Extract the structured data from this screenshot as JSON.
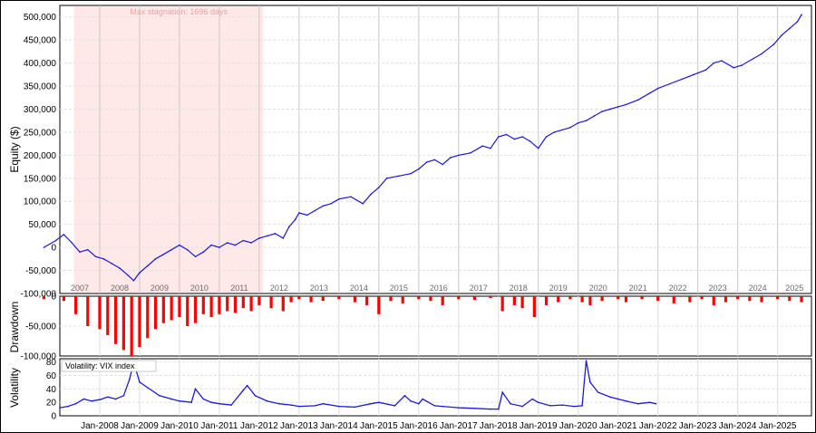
{
  "chart_data": [
    {
      "type": "line",
      "ylabel": "Equity ($)",
      "ylim": [
        -100000,
        525000
      ],
      "yticks": [
        -100000,
        -50000,
        0,
        50000,
        100000,
        150000,
        200000,
        250000,
        300000,
        350000,
        400000,
        450000,
        500000
      ],
      "ytick_labels": [
        "-100,000",
        "-50,000",
        "0",
        "50,000",
        "100,000",
        "150,000",
        "200,000",
        "250,000",
        "300,000",
        "350,000",
        "400,000",
        "450,000",
        "500,000"
      ],
      "year_labels": [
        "2007",
        "2008",
        "2009",
        "2010",
        "2011",
        "2012",
        "2013",
        "2014",
        "2015",
        "2016",
        "2017",
        "2018",
        "2019",
        "2020",
        "2021",
        "2022",
        "2023",
        "2024",
        "2025"
      ],
      "annotation": "Max stagnation: 1696 days",
      "stagnation": [
        2007.35,
        2012.1
      ],
      "grid": true,
      "series": [
        {
          "color": "#1a1ad6",
          "x": [
            2006.6,
            2006.9,
            2007.1,
            2007.3,
            2007.5,
            2007.7,
            2007.9,
            2008.1,
            2008.3,
            2008.5,
            2008.7,
            2008.85,
            2009.0,
            2009.2,
            2009.4,
            2009.6,
            2009.8,
            2010.0,
            2010.2,
            2010.4,
            2010.6,
            2010.8,
            2011.0,
            2011.2,
            2011.4,
            2011.6,
            2011.8,
            2012.0,
            2012.2,
            2012.4,
            2012.6,
            2012.75,
            2012.9,
            2013.0,
            2013.2,
            2013.4,
            2013.6,
            2013.8,
            2014.0,
            2014.3,
            2014.6,
            2014.8,
            2015.0,
            2015.2,
            2015.5,
            2015.8,
            2016.0,
            2016.2,
            2016.4,
            2016.6,
            2016.8,
            2017.0,
            2017.3,
            2017.6,
            2017.8,
            2018.0,
            2018.2,
            2018.4,
            2018.6,
            2018.8,
            2019.0,
            2019.2,
            2019.4,
            2019.6,
            2019.8,
            2020.0,
            2020.2,
            2020.4,
            2020.6,
            2020.8,
            2021.0,
            2021.2,
            2021.5,
            2021.8,
            2022.0,
            2022.3,
            2022.6,
            2022.9,
            2023.2,
            2023.4,
            2023.6,
            2023.9,
            2024.1,
            2024.4,
            2024.6,
            2024.9,
            2025.1,
            2025.3,
            2025.5,
            2025.6
          ],
          "values": [
            0,
            15000,
            28000,
            10000,
            -10000,
            -5000,
            -20000,
            -25000,
            -35000,
            -45000,
            -60000,
            -72000,
            -55000,
            -40000,
            -25000,
            -15000,
            -5000,
            5000,
            -5000,
            -20000,
            -10000,
            5000,
            0,
            10000,
            5000,
            15000,
            10000,
            20000,
            25000,
            30000,
            20000,
            45000,
            60000,
            75000,
            70000,
            80000,
            90000,
            95000,
            105000,
            110000,
            95000,
            115000,
            130000,
            150000,
            155000,
            160000,
            170000,
            185000,
            190000,
            180000,
            195000,
            200000,
            205000,
            220000,
            215000,
            240000,
            245000,
            235000,
            240000,
            230000,
            215000,
            240000,
            250000,
            255000,
            260000,
            270000,
            275000,
            285000,
            295000,
            300000,
            305000,
            310000,
            320000,
            335000,
            345000,
            355000,
            365000,
            375000,
            385000,
            400000,
            405000,
            390000,
            395000,
            410000,
            420000,
            440000,
            460000,
            475000,
            490000,
            505000
          ]
        }
      ]
    },
    {
      "type": "bar",
      "ylabel": "Drawdown",
      "ylim": [
        -100000,
        0
      ],
      "yticks": [
        -100000,
        -50000,
        0
      ],
      "ytick_labels": [
        "-100,000",
        "-50,000",
        "0"
      ],
      "grid": true,
      "series": [
        {
          "color": "#ff0000",
          "x": [
            2006.6,
            2007.1,
            2007.4,
            2007.7,
            2008.0,
            2008.2,
            2008.4,
            2008.6,
            2008.8,
            2009.0,
            2009.2,
            2009.4,
            2009.6,
            2009.8,
            2010.0,
            2010.2,
            2010.4,
            2010.6,
            2010.8,
            2011.0,
            2011.2,
            2011.4,
            2011.6,
            2011.8,
            2012.0,
            2012.3,
            2012.6,
            2012.8,
            2013.0,
            2013.3,
            2013.6,
            2014.0,
            2014.4,
            2014.7,
            2015.0,
            2015.3,
            2015.6,
            2016.0,
            2016.3,
            2016.6,
            2017.0,
            2017.4,
            2017.8,
            2018.1,
            2018.4,
            2018.6,
            2018.9,
            2019.2,
            2019.5,
            2019.8,
            2020.1,
            2020.3,
            2020.6,
            2021.0,
            2021.2,
            2021.6,
            2022.0,
            2022.4,
            2022.8,
            2023.1,
            2023.4,
            2023.7,
            2024.0,
            2024.3,
            2024.6,
            2025.0,
            2025.3,
            2025.6
          ],
          "values": [
            -5000,
            -8000,
            -30000,
            -50000,
            -55000,
            -65000,
            -80000,
            -90000,
            -100000,
            -85000,
            -70000,
            -55000,
            -45000,
            -40000,
            -35000,
            -50000,
            -45000,
            -30000,
            -35000,
            -30000,
            -25000,
            -28000,
            -20000,
            -25000,
            -15000,
            -20000,
            -25000,
            -10000,
            -5000,
            -10000,
            -8000,
            -5000,
            -10000,
            -15000,
            -30000,
            -8000,
            -12000,
            -5000,
            -8000,
            -15000,
            -5000,
            -6000,
            -3000,
            -25000,
            -15000,
            -20000,
            -35000,
            -15000,
            -10000,
            -5000,
            -10000,
            -15000,
            -8000,
            -5000,
            -10000,
            -5000,
            -8000,
            -12000,
            -10000,
            -5000,
            -15000,
            -10000,
            -5000,
            -8000,
            -10000,
            -5000,
            -8000,
            -10000
          ]
        }
      ]
    },
    {
      "type": "line",
      "ylabel": "Volatility",
      "legend": "Volatility: VIX index",
      "ylim": [
        0,
        85
      ],
      "yticks": [
        0,
        20,
        40,
        60,
        80
      ],
      "ytick_labels": [
        "0",
        "20",
        "40",
        "60",
        "80"
      ],
      "xlim": [
        2007.0,
        2025.85
      ],
      "xtick_labels": [
        "Jan-2008",
        "Jan-2009",
        "Jan-2010",
        "Jan-2011",
        "Jan-2012",
        "Jan-2013",
        "Jan-2014",
        "Jan-2015",
        "Jan-2016",
        "Jan-2017",
        "Jan-2018",
        "Jan-2019",
        "Jan-2020",
        "Jan-2021",
        "Jan-2022",
        "Jan-2023",
        "Jan-2024",
        "Jan-2025"
      ],
      "grid": true,
      "series": [
        {
          "color": "#1a1ad6",
          "x": [
            2007.0,
            2007.2,
            2007.4,
            2007.6,
            2007.8,
            2008.0,
            2008.2,
            2008.4,
            2008.6,
            2008.75,
            2008.85,
            2009.0,
            2009.2,
            2009.5,
            2009.8,
            2010.0,
            2010.3,
            2010.4,
            2010.6,
            2010.8,
            2011.0,
            2011.3,
            2011.6,
            2011.7,
            2011.9,
            2012.2,
            2012.5,
            2012.8,
            2013.0,
            2013.4,
            2013.6,
            2014.0,
            2014.4,
            2014.8,
            2015.0,
            2015.4,
            2015.65,
            2015.8,
            2016.0,
            2016.1,
            2016.4,
            2016.6,
            2017.0,
            2017.4,
            2017.8,
            2018.0,
            2018.1,
            2018.3,
            2018.6,
            2018.85,
            2019.0,
            2019.3,
            2019.6,
            2019.9,
            2020.1,
            2020.2,
            2020.3,
            2020.5,
            2020.8,
            2021.0,
            2021.2,
            2021.5,
            2021.8,
            2021.95
          ],
          "values": [
            12,
            14,
            18,
            25,
            22,
            24,
            28,
            25,
            30,
            55,
            80,
            50,
            42,
            30,
            25,
            22,
            20,
            40,
            25,
            20,
            18,
            16,
            38,
            45,
            30,
            22,
            18,
            16,
            14,
            15,
            18,
            14,
            13,
            18,
            20,
            15,
            30,
            22,
            18,
            25,
            15,
            14,
            12,
            11,
            10,
            10,
            35,
            18,
            14,
            25,
            20,
            15,
            16,
            14,
            15,
            82,
            50,
            35,
            28,
            25,
            22,
            18,
            20,
            18
          ]
        }
      ]
    }
  ]
}
